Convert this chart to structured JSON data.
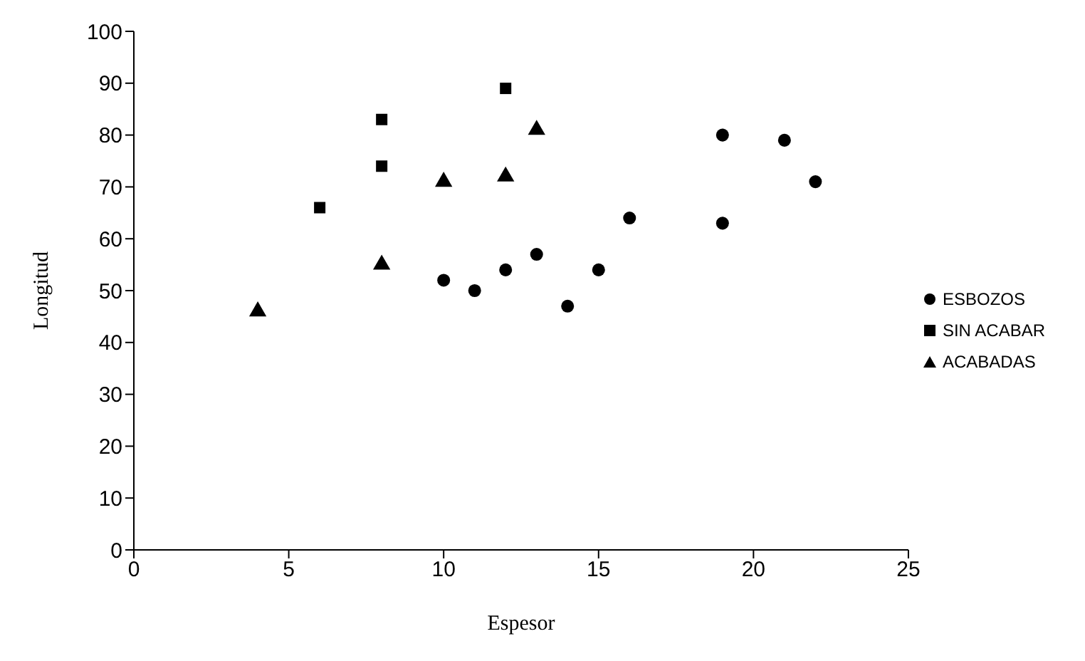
{
  "chart_data": {
    "type": "scatter",
    "xlabel": "Espesor",
    "ylabel": "Longitud",
    "xlim": [
      0,
      25
    ],
    "xticks": [
      0,
      5,
      10,
      15,
      20,
      25
    ],
    "ylim": [
      0,
      100
    ],
    "yticks": [
      0,
      10,
      20,
      30,
      40,
      50,
      60,
      70,
      80,
      90,
      100
    ],
    "grid": false,
    "legend": "right",
    "series": [
      {
        "name": "ESBOZOS",
        "color": "#000000",
        "marker": "circle",
        "x": [
          10,
          11,
          12,
          13,
          14,
          15,
          16,
          19,
          19,
          21,
          22
        ],
        "values": [
          52,
          50,
          54,
          57,
          47,
          54,
          64,
          80,
          63,
          79,
          71
        ]
      },
      {
        "name": "SIN ACABAR",
        "color": "#000000",
        "marker": "square",
        "x": [
          6,
          8,
          8,
          12
        ],
        "values": [
          66,
          83,
          74,
          89
        ]
      },
      {
        "name": "ACABADAS",
        "color": "#000000",
        "marker": "triangle",
        "x": [
          4,
          8,
          10,
          12,
          13
        ],
        "values": [
          46,
          55,
          71,
          72,
          81
        ]
      }
    ]
  }
}
